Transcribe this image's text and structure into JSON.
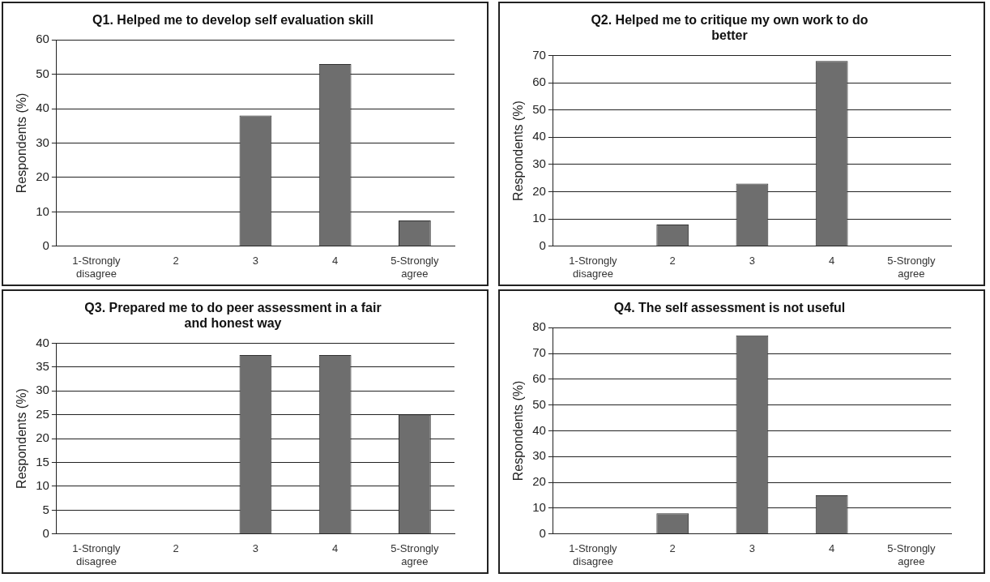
{
  "chart_data": [
    {
      "type": "bar",
      "title": "Q1. Helped me to develop self evaluation skill",
      "ylabel": "Respondents (%)",
      "categories": [
        "1-Strongly disagree",
        "2",
        "3",
        "4",
        "5-Strongly agree"
      ],
      "values": [
        0,
        0,
        38,
        53,
        7.5
      ],
      "color": "#6e6e6e",
      "ylim": [
        0,
        60
      ],
      "yticks": [
        0,
        10,
        20,
        30,
        40,
        50,
        60
      ],
      "grid": "y",
      "legend": false
    },
    {
      "type": "bar",
      "title": "Q2. Helped me to critique my own work to do better",
      "ylabel": "Respondents (%)",
      "categories": [
        "1-Strongly disagree",
        "2",
        "3",
        "4",
        "5-Strongly agree"
      ],
      "values": [
        0,
        8,
        23,
        68,
        0
      ],
      "color": "#6e6e6e",
      "ylim": [
        0,
        70
      ],
      "yticks": [
        0,
        10,
        20,
        30,
        40,
        50,
        60,
        70
      ],
      "grid": "y",
      "legend": false
    },
    {
      "type": "bar",
      "title": "Q3. Prepared me to do peer assessment in a fair and honest way",
      "ylabel": "Respondents (%)",
      "categories": [
        "1-Strongly disagree",
        "2",
        "3",
        "4",
        "5-Strongly agree"
      ],
      "values": [
        0,
        0,
        37.5,
        37.5,
        25
      ],
      "color": "#6e6e6e",
      "ylim": [
        0,
        40
      ],
      "yticks": [
        0,
        5,
        10,
        15,
        20,
        25,
        30,
        35,
        40
      ],
      "grid": "y",
      "legend": false
    },
    {
      "type": "bar",
      "title": "Q4. The self assessment is not useful",
      "ylabel": "Respondents (%)",
      "categories": [
        "1-Strongly disagree",
        "2",
        "3",
        "4",
        "5-Strongly agree"
      ],
      "values": [
        0,
        8,
        77,
        15,
        0
      ],
      "color": "#6e6e6e",
      "ylim": [
        0,
        80
      ],
      "yticks": [
        0,
        10,
        20,
        30,
        40,
        50,
        60,
        70,
        80
      ],
      "grid": "y",
      "legend": false
    }
  ]
}
